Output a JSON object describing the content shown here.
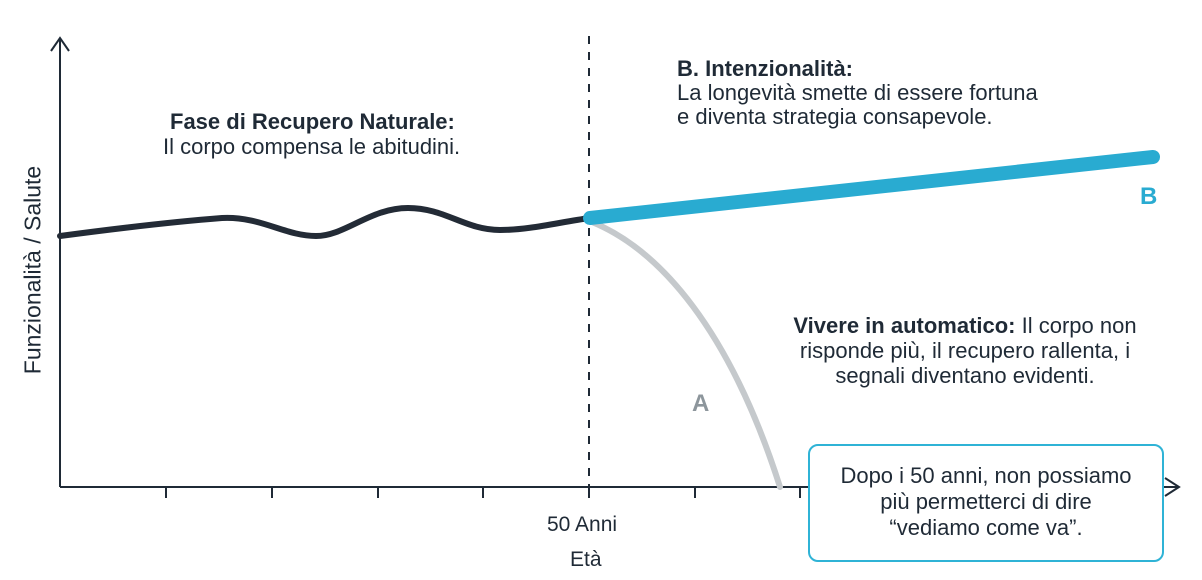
{
  "axes": {
    "y_label": "Funzionalità / Salute",
    "x_label": "Età",
    "x_tick_label": "50 Anni"
  },
  "phase_left": {
    "title": "Fase di Recupero Naturale:",
    "text": "Il corpo compensa le abitudini."
  },
  "path_b": {
    "title": "B. Intenzionalità:",
    "line1": "La longevità smette di essere fortuna",
    "line2": "e diventa strategia consapevole.",
    "marker": "B"
  },
  "path_a": {
    "title": "Vivere in automatico:",
    "line1_rest": " Il corpo non",
    "line2": "risponde più, il recupero rallenta, i",
    "line3": "segnali diventano evidenti.",
    "marker": "A"
  },
  "callout": {
    "line1": "Dopo i 50 anni, non possiamo",
    "line2": "più permetterci di dire",
    "line3": "“vediamo come va”."
  },
  "colors": {
    "baseline": "#232b36",
    "path_b": "#29abd1",
    "path_a": "#c5c9cc",
    "axis": "#1f2a36",
    "callout_border": "#2fb3d6"
  }
}
